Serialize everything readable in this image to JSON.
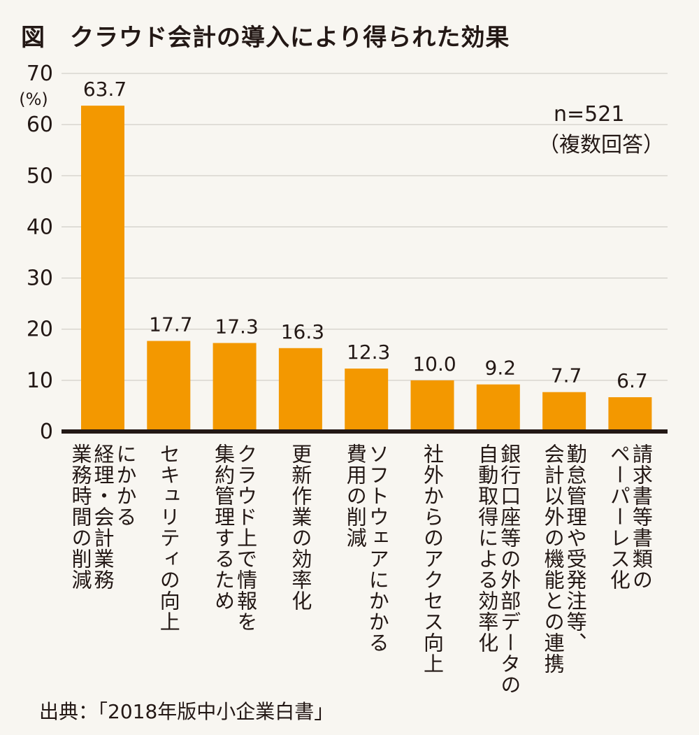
{
  "chart_data": {
    "type": "bar",
    "title": "図　クラウド会計の導入により得られた効果",
    "y_unit": "(%)",
    "sample_note": "n=521",
    "answer_note": "（複数回答）",
    "source": "出典：「2018年版中小企業白書」",
    "ylim": [
      0,
      70
    ],
    "yticks": [
      0,
      10,
      20,
      30,
      40,
      50,
      60,
      70
    ],
    "grid": true,
    "bar_color": "#f39800",
    "categories": [
      [
        "業務時間の削減",
        "経理・会計業務",
        "にかかる"
      ],
      [
        "セキュリティの向上"
      ],
      [
        "集約管理するため",
        "クラウド上で情報を"
      ],
      [
        "更新作業の効率化"
      ],
      [
        "費用の削減",
        "ソフトウェアにかかる"
      ],
      [
        "社外からのアクセス向上"
      ],
      [
        "自動取得による効率化",
        "銀行口座等の外部データの"
      ],
      [
        "会計以外の機能との連携",
        "勤怠管理や受発注等、"
      ],
      [
        "ペーパーレス化",
        "請求書等書類の"
      ]
    ],
    "values": [
      63.7,
      17.7,
      17.3,
      16.3,
      12.3,
      10.0,
      9.2,
      7.7,
      6.7
    ],
    "value_labels": [
      "63.7",
      "17.7",
      "17.3",
      "16.3",
      "12.3",
      "10.0",
      "9.2",
      "7.7",
      "6.7"
    ]
  }
}
